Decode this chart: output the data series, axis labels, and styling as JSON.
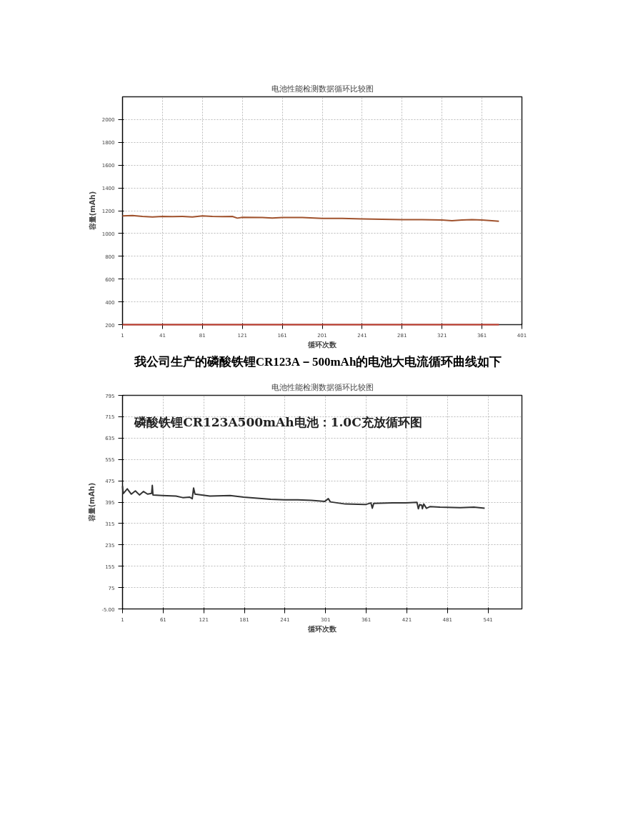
{
  "chart_data": [
    {
      "type": "line",
      "title": "电池性能检测数据循环比较图",
      "xlabel": "循环次数",
      "ylabel": "容量(mAh)",
      "xlim": [
        1,
        401
      ],
      "xticks": [
        1,
        41,
        81,
        121,
        161,
        201,
        241,
        281,
        321,
        361,
        401
      ],
      "ylim": [
        200,
        2200
      ],
      "yticks": [
        200,
        400,
        600,
        800,
        1000,
        1200,
        1400,
        1600,
        1800,
        2000
      ],
      "grid": true,
      "line_style": "solid",
      "series": [
        {
          "color": "#a0522d",
          "x": [
            1,
            11,
            21,
            31,
            41,
            51,
            61,
            71,
            81,
            91,
            101,
            111,
            116,
            121,
            141,
            151,
            161,
            181,
            201,
            221,
            241,
            261,
            281,
            301,
            321,
            331,
            341,
            351,
            361,
            371,
            378
          ],
          "values": [
            1155,
            1158,
            1150,
            1145,
            1150,
            1148,
            1150,
            1145,
            1155,
            1150,
            1148,
            1150,
            1135,
            1142,
            1140,
            1135,
            1140,
            1140,
            1132,
            1132,
            1128,
            1125,
            1122,
            1122,
            1118,
            1112,
            1118,
            1122,
            1118,
            1112,
            1108
          ]
        },
        {
          "color": "#c0392b",
          "x": [
            1,
            378
          ],
          "values": [
            200,
            200
          ]
        }
      ]
    },
    {
      "type": "line",
      "title": "电池性能检测数据循环比较图",
      "xlabel": "循环次数",
      "ylabel": "容量(mAh)",
      "annotations": [
        "我公司生产的磷酸铁锂CR123A－500mAh的电池大电流循环曲线如下",
        "磷酸铁锂CR123A500mAh电池：1.0C充放循环图"
      ],
      "xlim": [
        1,
        591
      ],
      "xticks": [
        1,
        61,
        121,
        181,
        241,
        301,
        361,
        421,
        481,
        541
      ],
      "ylim": [
        -5,
        795
      ],
      "yticks": [
        {
          "value": -5,
          "label": "-5.00"
        },
        75,
        155,
        235,
        315,
        395,
        475,
        555,
        635,
        715,
        795
      ],
      "grid": true,
      "line_style": "solid",
      "series": [
        {
          "color": "#333333",
          "x": [
            1,
            2,
            8,
            14,
            20,
            26,
            32,
            38,
            44,
            45,
            46,
            60,
            80,
            90,
            100,
            104,
            106,
            108,
            130,
            160,
            180,
            200,
            220,
            240,
            260,
            280,
            300,
            305,
            308,
            330,
            360,
            368,
            370,
            372,
            400,
            420,
            436,
            438,
            440,
            443,
            444,
            446,
            450,
            455,
            470,
            500,
            520,
            536
          ],
          "values": [
            455,
            427,
            445,
            425,
            437,
            422,
            435,
            425,
            428,
            458,
            422,
            420,
            418,
            412,
            414,
            408,
            448,
            425,
            418,
            420,
            414,
            410,
            406,
            404,
            404,
            402,
            398,
            408,
            396,
            388,
            386,
            392,
            372,
            390,
            392,
            392,
            394,
            370,
            386,
            384,
            370,
            388,
            372,
            378,
            376,
            374,
            376,
            372
          ]
        }
      ]
    }
  ]
}
